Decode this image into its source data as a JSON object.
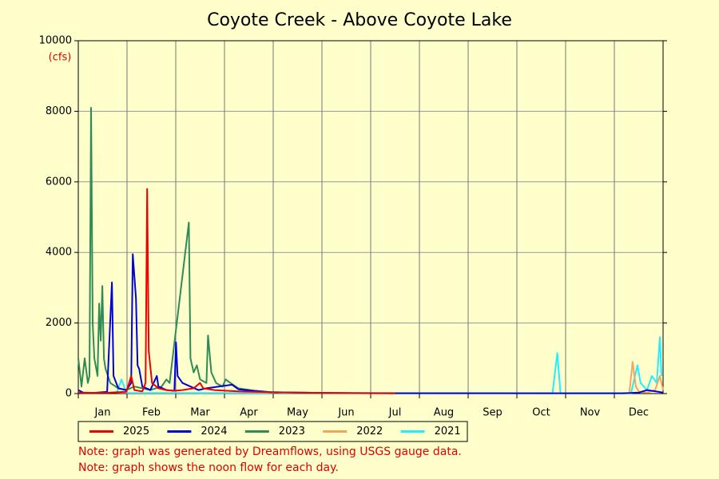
{
  "chart_data": {
    "type": "line",
    "title": "Coyote Creek - Above Coyote Lake",
    "y_unit": "(cfs)",
    "categories": [
      "Jan",
      "Feb",
      "Mar",
      "Apr",
      "May",
      "Jun",
      "Jul",
      "Aug",
      "Sep",
      "Oct",
      "Nov",
      "Dec"
    ],
    "xlim": [
      0,
      365
    ],
    "ylim": [
      0,
      10000
    ],
    "yticks": [
      0,
      2000,
      4000,
      6000,
      8000,
      10000
    ],
    "grid": true,
    "legend": "bottom",
    "series": [
      {
        "name": "2025",
        "color": "#ee0000",
        "x": [
          0,
          5,
          20,
          30,
          33,
          35,
          40,
          42,
          43,
          44,
          46,
          50,
          55,
          60,
          65,
          72,
          76,
          78,
          85,
          100,
          120,
          150,
          180,
          198
        ],
        "values": [
          30,
          20,
          30,
          50,
          500,
          100,
          60,
          300,
          5800,
          1200,
          300,
          150,
          100,
          80,
          100,
          150,
          300,
          150,
          100,
          60,
          40,
          20,
          10,
          5
        ]
      },
      {
        "name": "2024",
        "color": "#0000dd",
        "x": [
          0,
          3,
          10,
          18,
          21,
          22,
          25,
          30,
          33,
          34,
          36,
          37,
          38,
          40,
          45,
          49,
          50,
          55,
          60,
          61,
          62,
          65,
          70,
          75,
          80,
          96,
          100,
          110,
          120,
          150,
          200,
          300,
          340,
          350,
          355,
          362,
          365
        ],
        "values": [
          100,
          30,
          20,
          50,
          3150,
          500,
          150,
          100,
          300,
          3950,
          2700,
          800,
          700,
          200,
          100,
          500,
          200,
          100,
          80,
          1450,
          500,
          300,
          200,
          100,
          150,
          250,
          120,
          80,
          40,
          20,
          10,
          10,
          10,
          30,
          100,
          50,
          30
        ]
      },
      {
        "name": "2023",
        "color": "#2e8b57",
        "x": [
          0,
          2,
          4,
          6,
          7,
          8,
          9,
          10,
          12,
          13,
          14,
          15,
          16,
          17,
          20,
          25,
          30,
          35,
          40,
          45,
          52,
          55,
          57,
          69,
          70,
          72,
          74,
          76,
          80,
          81,
          83,
          86,
          90,
          92,
          95,
          100,
          110,
          120,
          125
        ],
        "values": [
          1000,
          200,
          1000,
          300,
          500,
          8100,
          2000,
          1000,
          500,
          2550,
          1500,
          3050,
          1000,
          700,
          300,
          150,
          100,
          200,
          150,
          100,
          200,
          400,
          300,
          4850,
          1000,
          600,
          800,
          400,
          300,
          1650,
          600,
          300,
          200,
          400,
          300,
          150,
          80,
          40,
          20
        ]
      },
      {
        "name": "2022",
        "color": "#f4a460",
        "x": [
          344,
          346,
          348,
          350,
          355,
          360,
          363,
          365
        ],
        "values": [
          50,
          900,
          200,
          50,
          30,
          100,
          500,
          100
        ]
      },
      {
        "name": "2021",
        "color": "#22eeff",
        "x": [
          24,
          27,
          30,
          296,
          299,
          301,
          345,
          349,
          351,
          355,
          358,
          361,
          363,
          364
        ],
        "values": [
          20,
          400,
          20,
          10,
          1150,
          10,
          10,
          800,
          300,
          100,
          500,
          300,
          1600,
          500
        ]
      }
    ],
    "notes": [
      "Note: graph was generated by Dreamflows, using USGS gauge data.",
      "Note: graph shows the noon flow for each day."
    ]
  }
}
